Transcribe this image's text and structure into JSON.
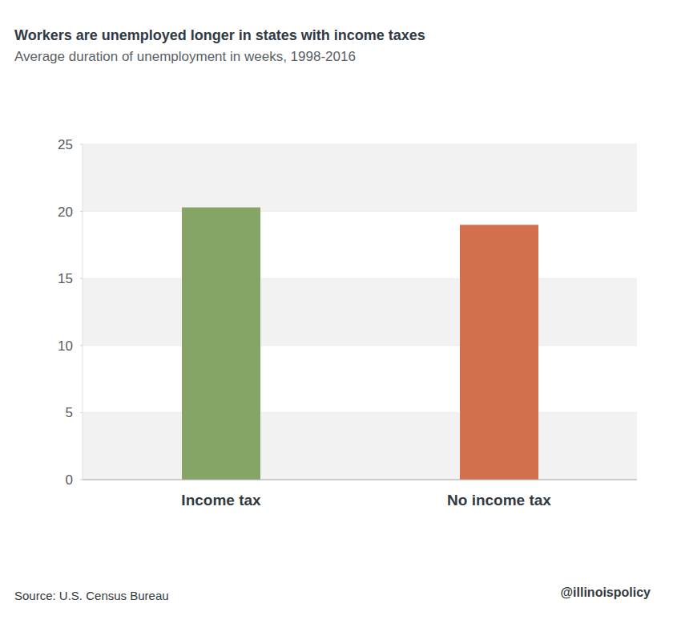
{
  "chart_data": {
    "type": "bar",
    "title": "Workers are unemployed longer in states with income taxes",
    "subtitle": "Average duration of unemployment in weeks, 1998-2016",
    "categories": [
      "Income tax",
      "No income tax"
    ],
    "values": [
      20.3,
      19.0
    ],
    "colors": [
      "#84a566",
      "#d2704e"
    ],
    "ylim": [
      0,
      25
    ],
    "yticks": [
      0,
      5,
      10,
      15,
      20,
      25
    ],
    "grid": true,
    "annotations": [
      "Source: U.S. Census Bureau",
      "@illinoispolicy"
    ]
  }
}
